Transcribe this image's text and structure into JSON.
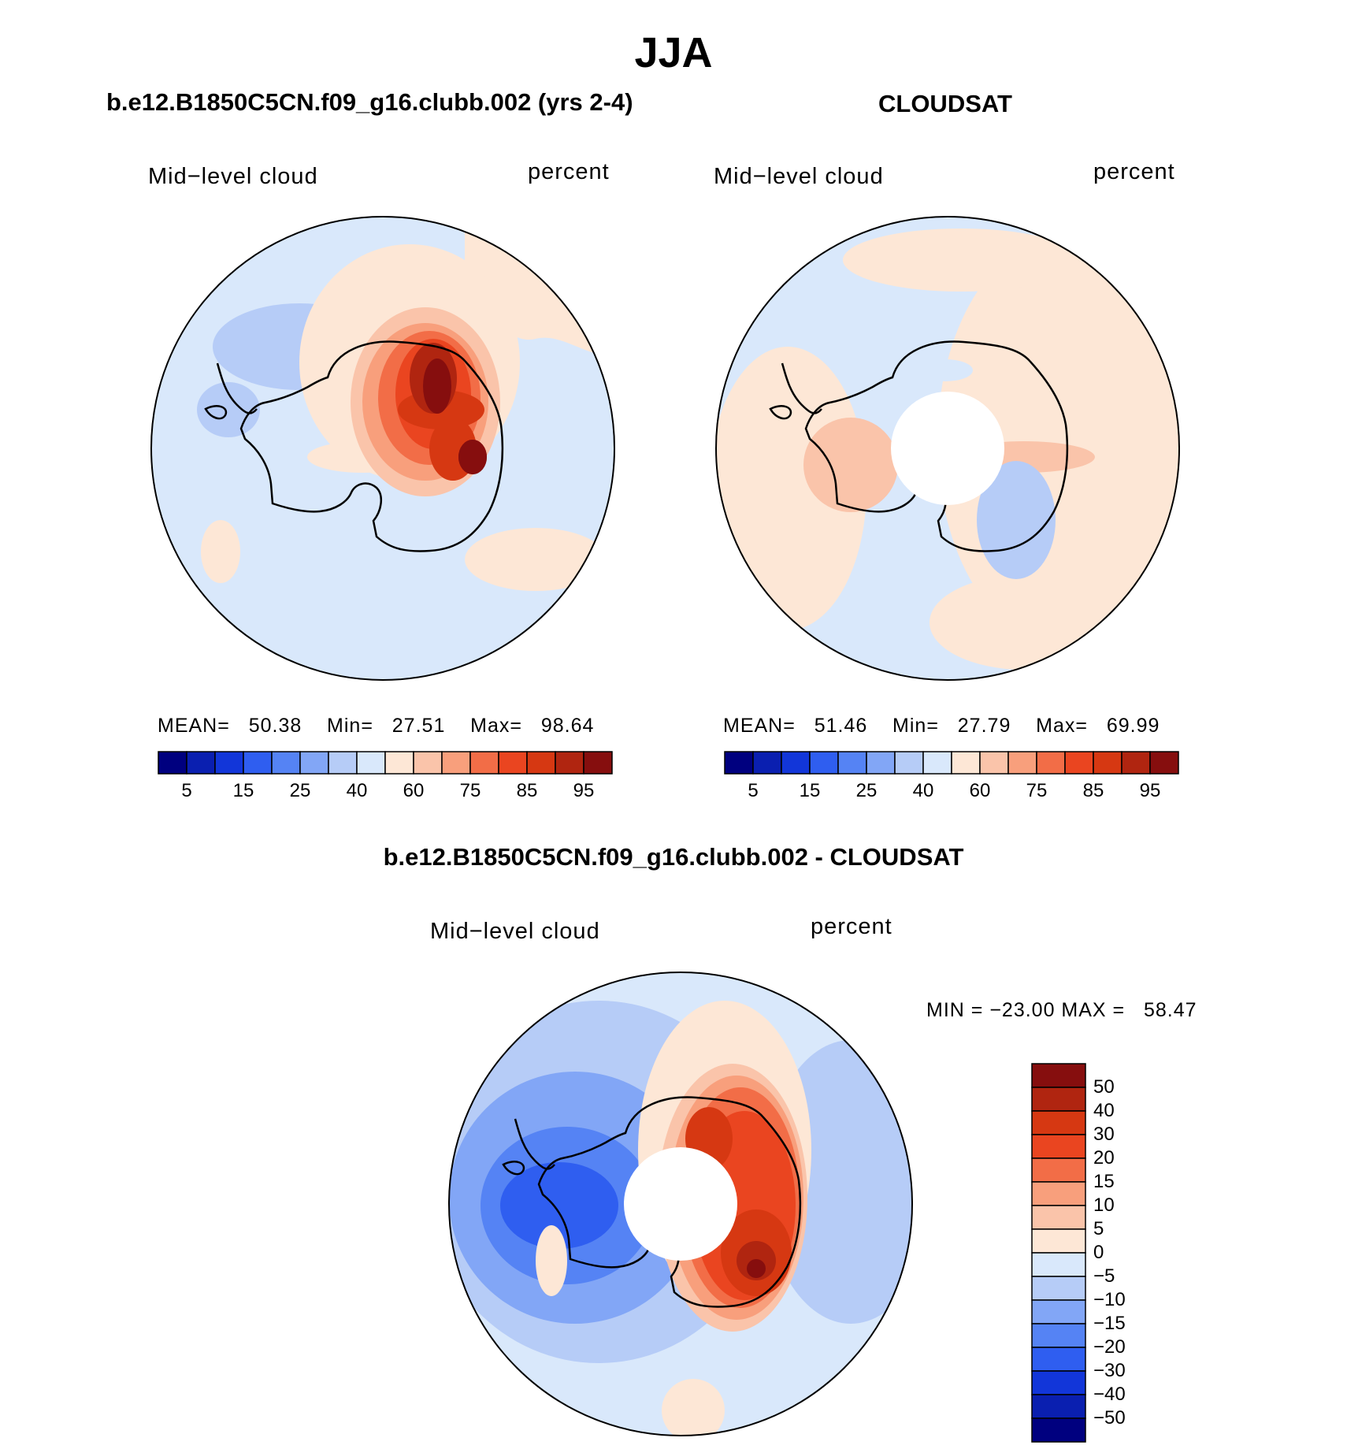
{
  "title": "JJA",
  "panels": [
    {
      "id": "model",
      "title": "b.e12.B1850C5CN.f09_g16.clubb.002 (yrs 2-4)",
      "left_label": "Mid−level cloud",
      "right_label": "percent",
      "stats": {
        "mean_label": "MEAN=",
        "mean": "50.38",
        "min_label": "Min=",
        "min": "27.51",
        "max_label": "Max=",
        "max": "98.64"
      }
    },
    {
      "id": "obs",
      "title": "CLOUDSAT",
      "left_label": "Mid−level cloud",
      "right_label": "percent",
      "stats": {
        "mean_label": "MEAN=",
        "mean": "51.46",
        "min_label": "Min=",
        "min": "27.79",
        "max_label": "Max=",
        "max": "69.99"
      }
    },
    {
      "id": "diff",
      "title": "b.e12.B1850C5CN.f09_g16.clubb.002 - CLOUDSAT",
      "left_label": "Mid−level cloud",
      "right_label": "percent",
      "stats_line": "MIN = −23.00 MAX =   58.47"
    }
  ],
  "colorbar_abs": {
    "colors": [
      "#00007f",
      "#0a1fb0",
      "#1236d9",
      "#2f5ef0",
      "#5583f4",
      "#82a6f6",
      "#b6ccf7",
      "#d9e8fb",
      "#fde7d6",
      "#fac4aa",
      "#f89f7c",
      "#f26d47",
      "#ea4520",
      "#d63812",
      "#b02510",
      "#860e0e"
    ],
    "tick_labels": [
      "5",
      "15",
      "25",
      "40",
      "60",
      "75",
      "85",
      "95"
    ]
  },
  "colorbar_diff": {
    "colors": [
      "#860e0e",
      "#b02510",
      "#d63812",
      "#ea4520",
      "#f26d47",
      "#f89f7c",
      "#fac4aa",
      "#fde7d6",
      "#d9e8fb",
      "#b6ccf7",
      "#82a6f6",
      "#5583f4",
      "#2f5ef0",
      "#1236d9",
      "#0a1fb0",
      "#00007f"
    ],
    "tick_labels": [
      "50",
      "40",
      "30",
      "20",
      "15",
      "10",
      "5",
      "0",
      "−5",
      "−10",
      "−15",
      "−20",
      "−30",
      "−40",
      "−50"
    ]
  }
}
